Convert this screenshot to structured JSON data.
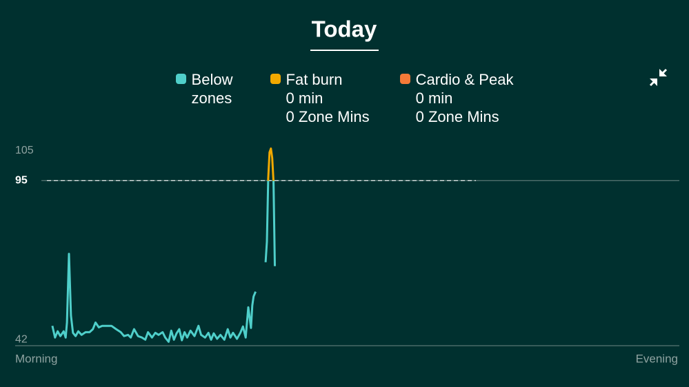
{
  "chart_data": {
    "type": "line",
    "title": "Today",
    "x_labels": [
      "Morning",
      "Evening"
    ],
    "xlim": [
      0,
      100
    ],
    "ylim": [
      40,
      107
    ],
    "yticks": [
      42,
      95,
      105
    ],
    "threshold": 95,
    "series": [
      {
        "name": "Below zones",
        "color": "#4fcfca",
        "x": [
          5.6,
          6.0,
          6.4,
          6.8,
          7.3,
          7.6,
          7.8,
          8.1,
          8.4,
          8.7,
          9.1,
          9.5,
          10.0,
          10.6,
          11.2,
          11.7,
          12.1,
          12.6,
          13.1,
          13.8,
          14.5,
          15.2,
          15.9,
          16.4,
          17.0,
          17.4,
          17.9,
          18.5,
          19.1,
          19.6,
          20.0,
          20.6,
          21.1,
          21.6,
          22.2,
          22.6,
          23.1,
          23.5,
          23.9,
          24.3,
          24.7,
          25.1,
          25.5,
          25.9,
          26.4,
          27.0,
          27.6,
          28.0,
          28.6,
          29.1,
          29.5,
          29.9,
          30.4,
          30.9,
          31.5,
          32.0,
          32.4,
          32.8,
          33.4,
          33.9,
          34.3,
          34.7,
          35.1,
          35.5,
          35.7,
          35.9,
          36.2,
          null,
          37.7,
          37.9,
          38.1,
          38.3,
          38.5,
          38.7,
          38.9,
          39.1
        ],
        "values": [
          46.6,
          42.7,
          44.8,
          43.2,
          44.8,
          42.7,
          47.7,
          70.6,
          50.0,
          44.3,
          43.2,
          44.8,
          43.6,
          44.5,
          44.5,
          45.5,
          47.7,
          46.1,
          46.6,
          46.6,
          46.6,
          45.5,
          44.5,
          43.2,
          43.6,
          42.7,
          45.5,
          43.2,
          42.7,
          42.0,
          44.5,
          42.7,
          44.3,
          43.6,
          44.5,
          42.7,
          41.3,
          45.0,
          42.0,
          44.1,
          45.5,
          41.8,
          44.5,
          42.7,
          45.0,
          43.2,
          46.6,
          43.6,
          42.7,
          44.3,
          42.0,
          44.1,
          42.3,
          43.6,
          42.0,
          45.5,
          42.7,
          44.3,
          42.3,
          44.3,
          46.4,
          42.7,
          52.8,
          45.9,
          53.4,
          56.4,
          58.0,
          null,
          67.8,
          74.7,
          95.7,
          104.4,
          105.7,
          102.5,
          94.5,
          66.5
        ]
      }
    ],
    "zones": [
      {
        "name": "Fat burn",
        "color": "#f2a900",
        "details": [
          "0 min",
          "0 Zone Mins"
        ]
      },
      {
        "name": "Cardio & Peak",
        "color": "#f47a38",
        "details": [
          "0 min",
          "0 Zone Mins"
        ]
      }
    ]
  }
}
